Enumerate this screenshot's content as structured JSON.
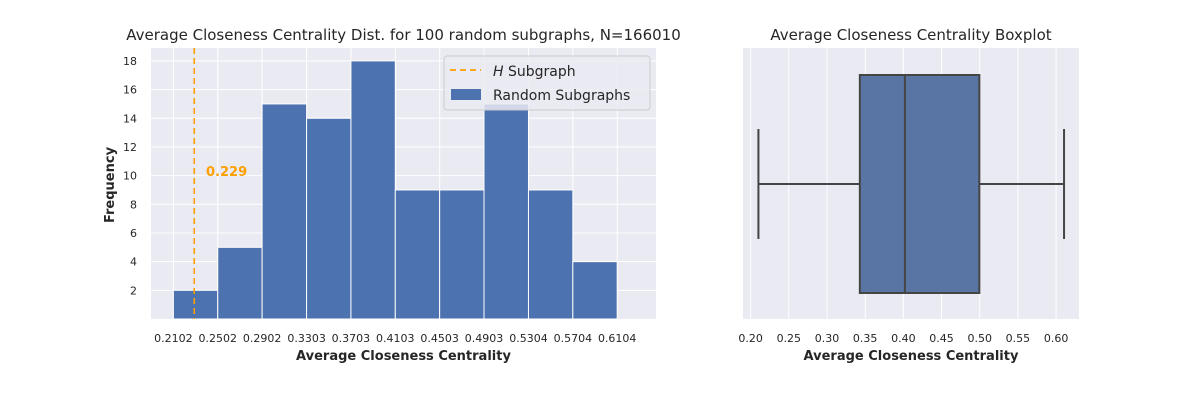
{
  "chart_data": [
    {
      "type": "histogram",
      "title": "Average Closeness Centrality Dist. for 100 random subgraphs, N=166010",
      "xlabel": "Average Closeness Centrality",
      "ylabel": "Frequency",
      "x_ticks": [
        "0.2102",
        "0.2502",
        "0.2902",
        "0.3303",
        "0.3703",
        "0.4103",
        "0.4503",
        "0.4903",
        "0.5304",
        "0.5704",
        "0.6104"
      ],
      "bin_edges": [
        0.2102,
        0.2502,
        0.2902,
        0.3303,
        0.3703,
        0.4103,
        0.4503,
        0.4903,
        0.5304,
        0.5704,
        0.6104
      ],
      "values": [
        2,
        5,
        15,
        14,
        18,
        9,
        9,
        15,
        9,
        4
      ],
      "y_ticks": [
        2,
        4,
        6,
        8,
        10,
        12,
        14,
        16,
        18
      ],
      "xlim": [
        0.19,
        0.6454
      ],
      "ylim": [
        0,
        18.9
      ],
      "grid": true,
      "bar_color": "#4c72b0",
      "reference_line": {
        "value": 0.229,
        "label_prefix": "H",
        "label_suffix": " Subgraph",
        "annotation": "0.229",
        "color": "#ff9f00"
      },
      "legend": {
        "placement": "top-right",
        "entries": [
          "H Subgraph",
          "Random Subgraphs"
        ]
      }
    },
    {
      "type": "boxplot",
      "title": "Average Closeness Centrality Boxplot",
      "xlabel": "Average Closeness Centrality",
      "x_ticks": [
        "0.20",
        "0.25",
        "0.30",
        "0.35",
        "0.40",
        "0.45",
        "0.50",
        "0.55",
        "0.60"
      ],
      "xlim": [
        0.19,
        0.63
      ],
      "whisker_low": 0.2102,
      "q1": 0.343,
      "median": 0.402,
      "q3": 0.4995,
      "whisker_high": 0.6104,
      "grid": true,
      "box_color": "#5875a4"
    }
  ]
}
